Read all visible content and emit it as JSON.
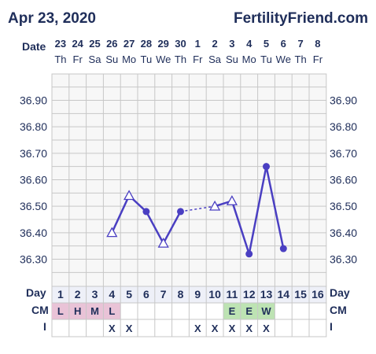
{
  "header": {
    "date": "Apr 23, 2020",
    "site": "FertilityFriend.com"
  },
  "labels": {
    "date_row": "Date",
    "day_row": "Day",
    "cm_row": "CM",
    "i_row": "I"
  },
  "colors": {
    "line": "#4a3fc2",
    "grid": "#c7c7c7",
    "plot_bg": "#f7f7f7",
    "header_bg": "#eef0f8",
    "text": "#1f2e5a",
    "cm_pink": "#e9c3d7",
    "cm_green": "#bde3b3"
  },
  "chart_data": {
    "type": "line",
    "ylim": [
      36.2,
      37.0
    ],
    "yticks": [
      "36.90",
      "36.80",
      "36.70",
      "36.60",
      "36.50",
      "36.40",
      "36.30"
    ],
    "ytick_values": [
      36.9,
      36.8,
      36.7,
      36.6,
      36.5,
      36.4,
      36.3
    ],
    "dates": [
      "23",
      "24",
      "25",
      "26",
      "27",
      "28",
      "29",
      "30",
      "1",
      "2",
      "3",
      "4",
      "5",
      "6",
      "7",
      "8"
    ],
    "weekdays": [
      "Th",
      "Fr",
      "Sa",
      "Su",
      "Mo",
      "Tu",
      "We",
      "Th",
      "Fr",
      "Sa",
      "Su",
      "Mo",
      "Tu",
      "We",
      "Th",
      "Fr"
    ],
    "days": [
      "1",
      "2",
      "3",
      "4",
      "5",
      "6",
      "7",
      "8",
      "9",
      "10",
      "11",
      "12",
      "13",
      "14",
      "15",
      "16"
    ],
    "temps": [
      null,
      null,
      null,
      36.4,
      36.54,
      36.48,
      36.36,
      36.48,
      null,
      36.5,
      36.52,
      36.32,
      36.65,
      36.34,
      null,
      null
    ],
    "markers": [
      null,
      null,
      null,
      "open",
      "open",
      "filled",
      "open",
      "filled",
      null,
      "open",
      "open",
      "filled",
      "filled",
      "filled",
      null,
      null
    ],
    "dashed_segments": [
      [
        8,
        10
      ]
    ],
    "cm": [
      "L",
      "H",
      "M",
      "L",
      "",
      "",
      "",
      "",
      "",
      "",
      "E",
      "E",
      "W",
      "",
      "",
      ""
    ],
    "intercourse": [
      "",
      "",
      "",
      "X",
      "X",
      "",
      "",
      "",
      "X",
      "X",
      "X",
      "X",
      "X",
      "",
      "",
      ""
    ]
  }
}
